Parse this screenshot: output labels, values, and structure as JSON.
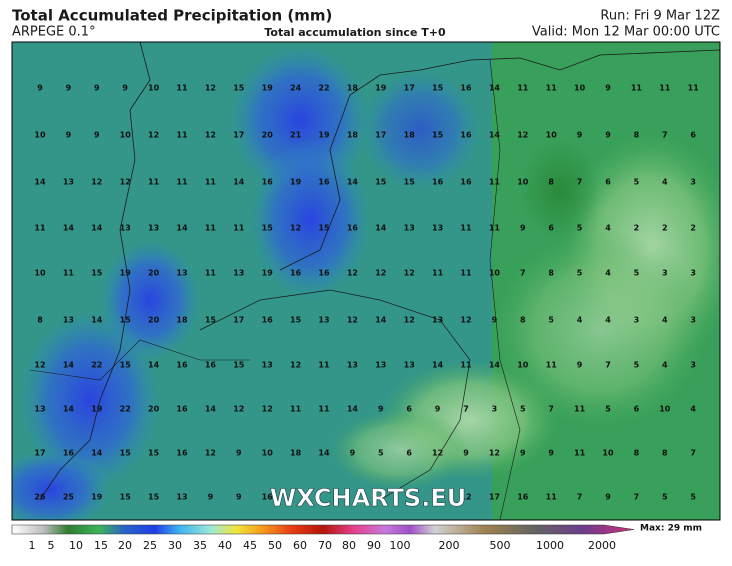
{
  "header": {
    "title": "Total Accumulated Precipitation (mm)",
    "model": "ARPEGE 0.1°",
    "subtitle": "Total accumulation since T+0",
    "run": "Run: Fri 9 Mar 12Z",
    "valid": "Valid: Mon 12 Mar 00:00 UTC"
  },
  "map": {
    "watermark": "WXCHARTS.EU",
    "grid": [
      [
        9,
        9,
        9,
        9,
        10,
        11,
        12,
        15,
        19,
        24,
        22,
        18,
        19,
        17,
        15,
        16,
        14,
        11,
        11,
        10,
        9,
        11,
        11,
        11
      ],
      [
        10,
        9,
        9,
        10,
        12,
        11,
        12,
        17,
        20,
        21,
        19,
        18,
        17,
        18,
        15,
        16,
        14,
        12,
        10,
        9,
        9,
        8,
        7,
        6
      ],
      [
        14,
        13,
        12,
        12,
        11,
        11,
        11,
        14,
        16,
        19,
        16,
        14,
        15,
        15,
        16,
        16,
        11,
        10,
        8,
        7,
        6,
        5,
        4,
        3
      ],
      [
        11,
        14,
        14,
        13,
        13,
        14,
        11,
        11,
        15,
        12,
        15,
        16,
        14,
        13,
        13,
        11,
        11,
        9,
        6,
        5,
        4,
        2,
        2,
        2
      ],
      [
        10,
        11,
        15,
        19,
        20,
        13,
        11,
        13,
        19,
        16,
        16,
        12,
        12,
        12,
        11,
        11,
        10,
        7,
        8,
        5,
        4,
        5,
        3,
        3
      ],
      [
        8,
        13,
        14,
        15,
        20,
        18,
        15,
        17,
        16,
        15,
        13,
        12,
        14,
        12,
        13,
        12,
        9,
        8,
        5,
        4,
        4,
        3,
        4,
        3
      ],
      [
        12,
        14,
        22,
        15,
        14,
        16,
        16,
        15,
        13,
        12,
        11,
        13,
        13,
        13,
        14,
        11,
        14,
        10,
        11,
        9,
        7,
        5,
        4,
        3
      ],
      [
        13,
        14,
        19,
        22,
        20,
        16,
        14,
        12,
        12,
        11,
        11,
        14,
        9,
        6,
        9,
        7,
        3,
        5,
        7,
        11,
        5,
        6,
        10,
        4
      ],
      [
        17,
        16,
        14,
        15,
        15,
        16,
        12,
        9,
        10,
        18,
        14,
        9,
        5,
        6,
        12,
        9,
        12,
        9,
        9,
        11,
        10,
        8,
        8,
        7
      ],
      [
        26,
        25,
        19,
        15,
        15,
        13,
        9,
        9,
        16,
        null,
        null,
        null,
        null,
        null,
        null,
        12,
        17,
        16,
        11,
        7,
        9,
        7,
        5,
        5
      ]
    ]
  },
  "legend": {
    "ticks": [
      1,
      5,
      10,
      15,
      20,
      25,
      30,
      35,
      40,
      45,
      50,
      60,
      70,
      80,
      90,
      100,
      200,
      500,
      1000,
      2000
    ],
    "max": "Max: 29 mm"
  }
}
